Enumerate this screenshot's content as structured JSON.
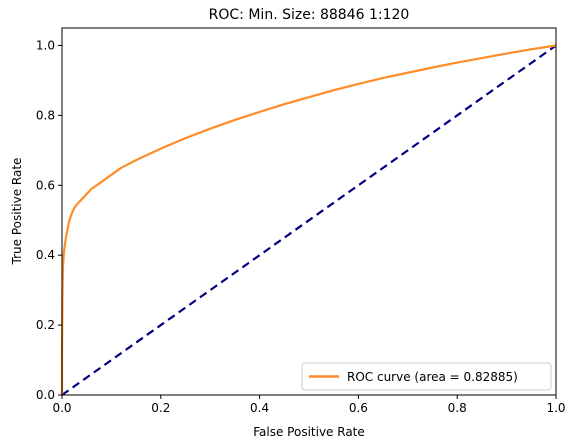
{
  "chart_data": {
    "type": "line",
    "title": "ROC: Min. Size: 88846 1:120",
    "xlabel": "False Positive Rate",
    "ylabel": "True Positive Rate",
    "xlim": [
      0.0,
      1.0
    ],
    "ylim": [
      0.0,
      1.05
    ],
    "x_ticks": [
      "0.0",
      "0.2",
      "0.4",
      "0.6",
      "0.8",
      "1.0"
    ],
    "y_ticks": [
      "0.0",
      "0.2",
      "0.4",
      "0.6",
      "0.8",
      "1.0"
    ],
    "grid": false,
    "legend_position": "lower-right",
    "series": [
      {
        "name": "ROC curve (area = 0.82885)",
        "color": "#ff8c28",
        "style": "solid",
        "x": [
          0.0,
          0.0,
          0.001,
          0.002,
          0.004,
          0.006,
          0.008,
          0.01,
          0.012,
          0.015,
          0.02,
          0.025,
          0.03,
          0.04,
          0.05,
          0.06,
          0.07,
          0.08,
          0.1,
          0.12,
          0.15,
          0.2,
          0.25,
          0.3,
          0.35,
          0.4,
          0.45,
          0.5,
          0.55,
          0.6,
          0.65,
          0.7,
          0.75,
          0.8,
          0.85,
          0.9,
          0.95,
          1.0
        ],
        "y": [
          0.0,
          0.12,
          0.3,
          0.37,
          0.41,
          0.43,
          0.45,
          0.465,
          0.48,
          0.5,
          0.52,
          0.535,
          0.545,
          0.56,
          0.575,
          0.59,
          0.6,
          0.61,
          0.63,
          0.65,
          0.672,
          0.705,
          0.735,
          0.762,
          0.787,
          0.81,
          0.832,
          0.852,
          0.872,
          0.89,
          0.907,
          0.922,
          0.937,
          0.951,
          0.964,
          0.977,
          0.989,
          1.0
        ]
      },
      {
        "name": "",
        "color": "#000080",
        "style": "dashed",
        "x": [
          0.0,
          1.0
        ],
        "y": [
          0.0,
          1.0
        ]
      }
    ]
  }
}
